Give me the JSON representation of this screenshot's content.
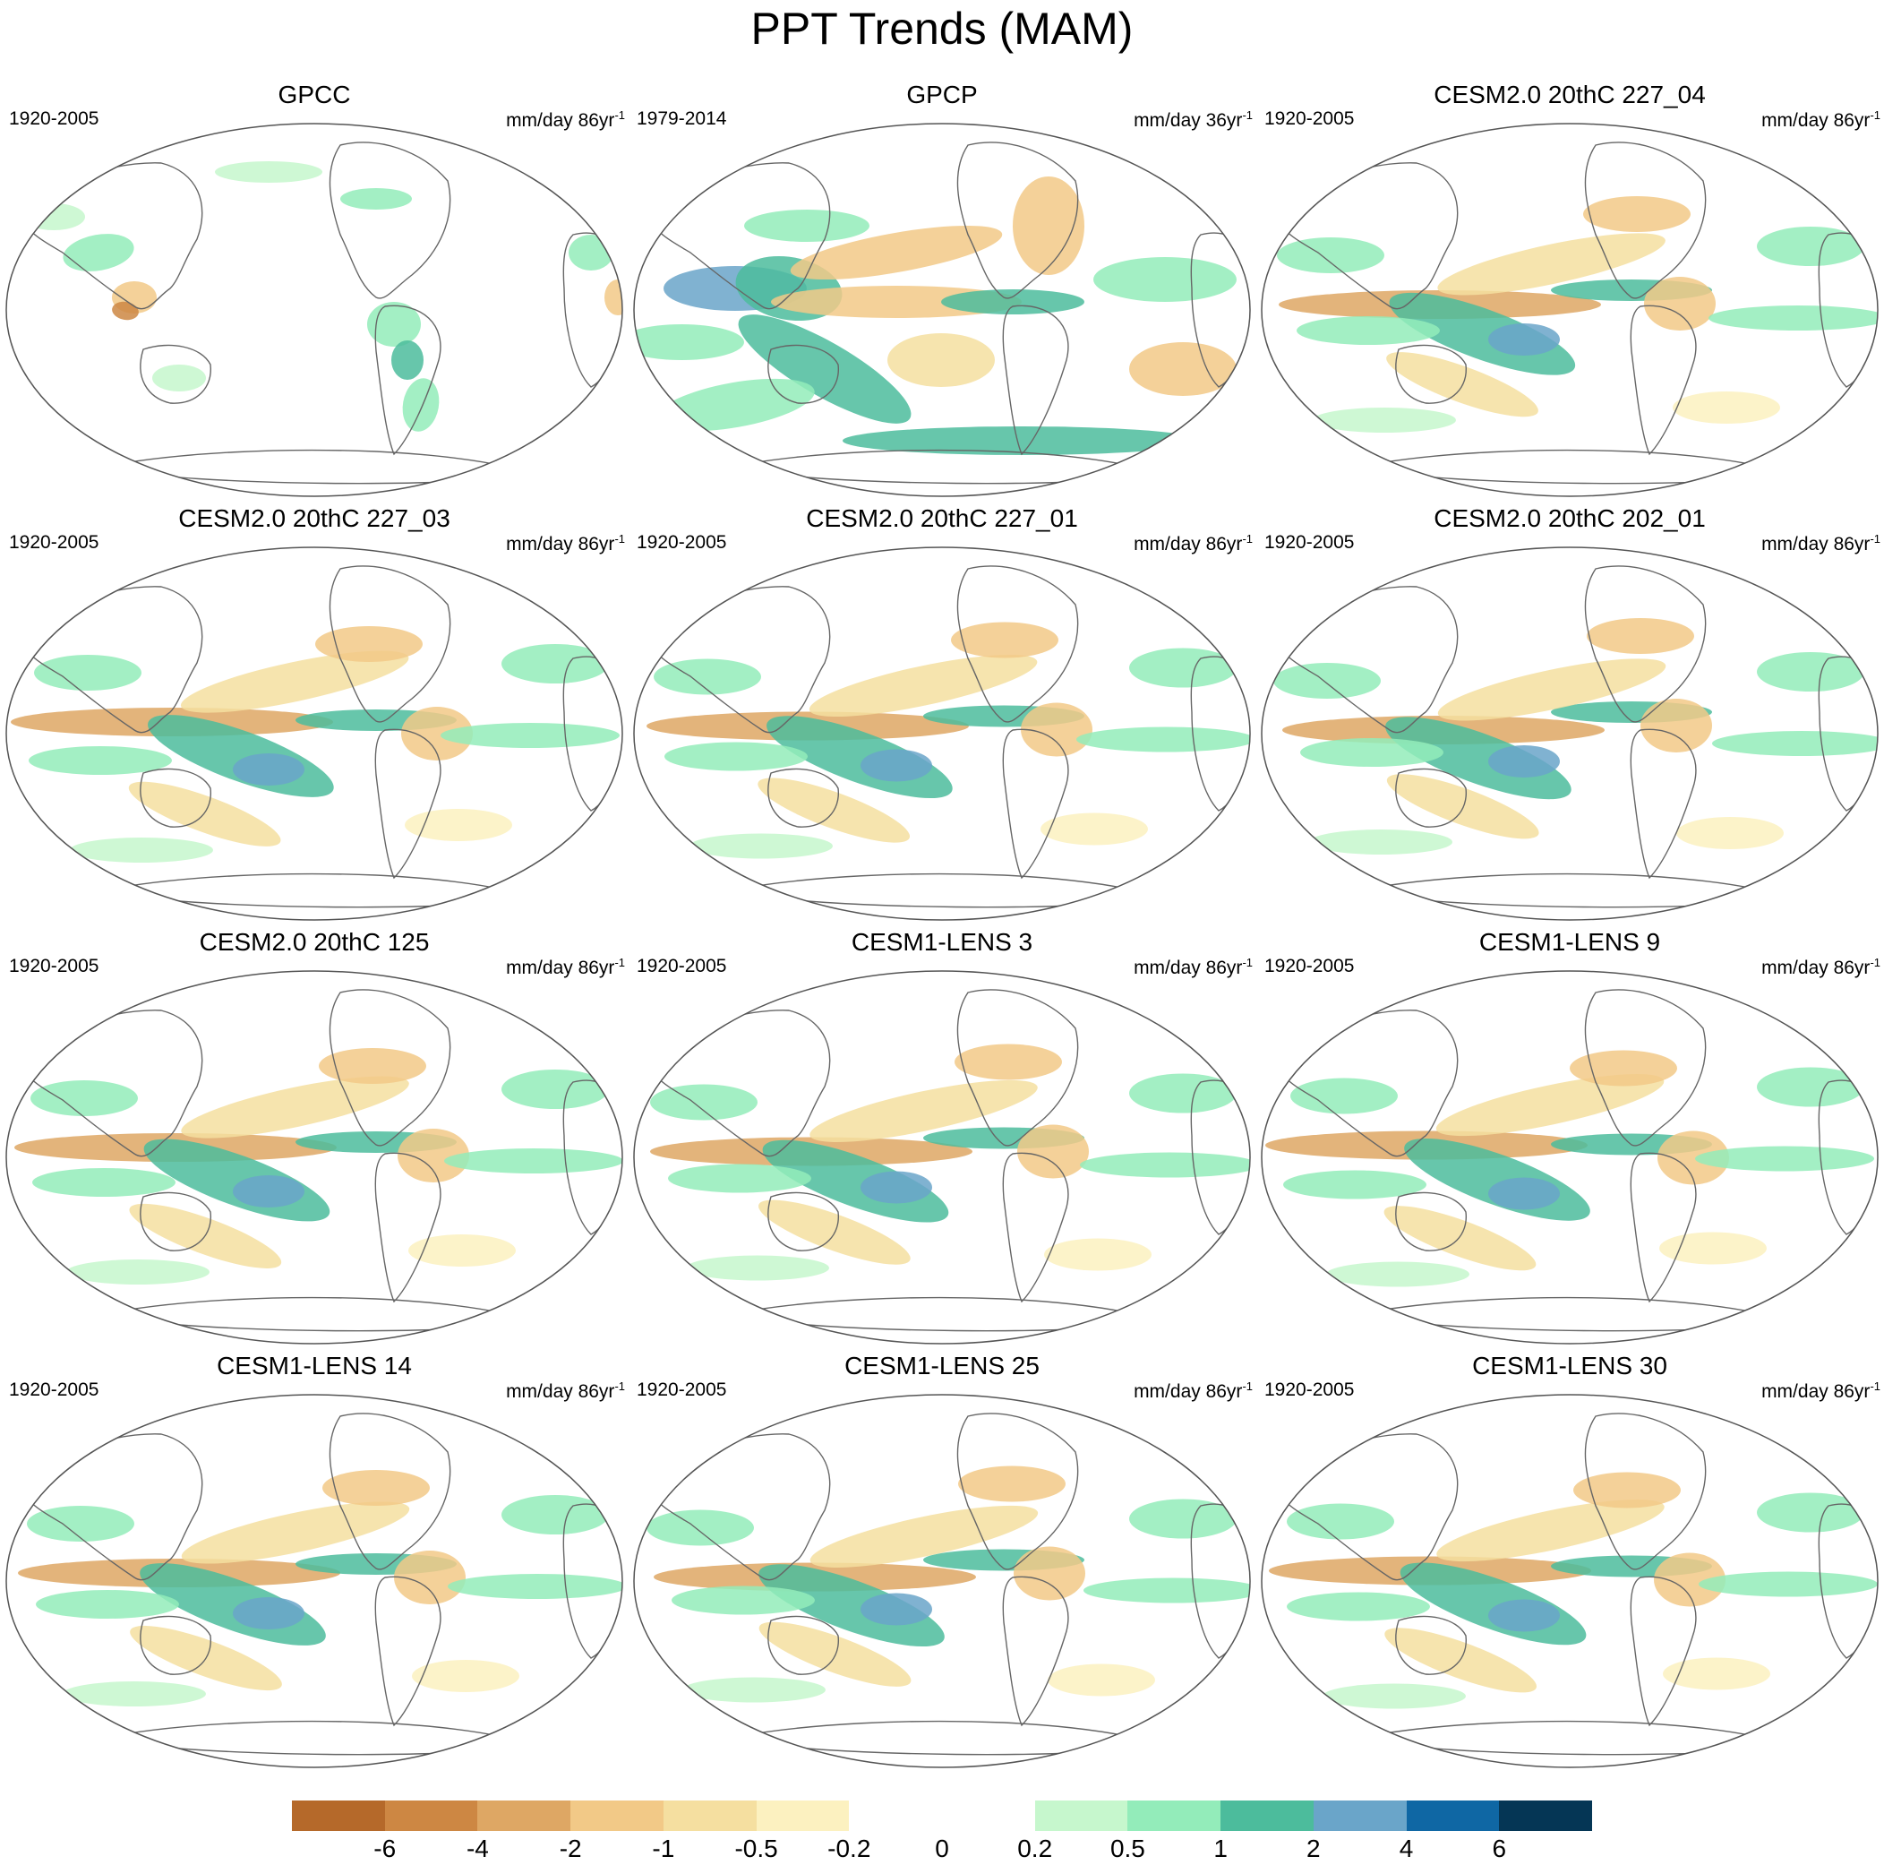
{
  "title": "PPT Trends (MAM)",
  "panels": [
    {
      "title": "GPCC",
      "period": "1920-2005",
      "units": "mm/day 86yr",
      "units_exp": "-1",
      "style": "obs-land"
    },
    {
      "title": "GPCP",
      "period": "1979-2014",
      "units": "mm/day 36yr",
      "units_exp": "-1",
      "style": "obs-sat"
    },
    {
      "title": "CESM2.0 20thC 227_04",
      "period": "1920-2005",
      "units": "mm/day 86yr",
      "units_exp": "-1",
      "style": "model"
    },
    {
      "title": "CESM2.0 20thC 227_03",
      "period": "1920-2005",
      "units": "mm/day 86yr",
      "units_exp": "-1",
      "style": "model"
    },
    {
      "title": "CESM2.0 20thC 227_01",
      "period": "1920-2005",
      "units": "mm/day 86yr",
      "units_exp": "-1",
      "style": "model"
    },
    {
      "title": "CESM2.0 20thC 202_01",
      "period": "1920-2005",
      "units": "mm/day 86yr",
      "units_exp": "-1",
      "style": "model"
    },
    {
      "title": "CESM2.0 20thC 125",
      "period": "1920-2005",
      "units": "mm/day 86yr",
      "units_exp": "-1",
      "style": "model"
    },
    {
      "title": "CESM1-LENS 3",
      "period": "1920-2005",
      "units": "mm/day 86yr",
      "units_exp": "-1",
      "style": "model"
    },
    {
      "title": "CESM1-LENS 9",
      "period": "1920-2005",
      "units": "mm/day 86yr",
      "units_exp": "-1",
      "style": "model"
    },
    {
      "title": "CESM1-LENS 14",
      "period": "1920-2005",
      "units": "mm/day 86yr",
      "units_exp": "-1",
      "style": "model"
    },
    {
      "title": "CESM1-LENS 25",
      "period": "1920-2005",
      "units": "mm/day 86yr",
      "units_exp": "-1",
      "style": "model"
    },
    {
      "title": "CESM1-LENS 30",
      "period": "1920-2005",
      "units": "mm/day 86yr",
      "units_exp": "-1",
      "style": "model"
    }
  ],
  "colorbar": {
    "colors": [
      "#b5692a",
      "#cd8743",
      "#dea764",
      "#f2c987",
      "#f5dfa0",
      "#fcf1c0",
      "#ffffff",
      "#ffffff",
      "#c6f7cd",
      "#93ecba",
      "#4cbc9c",
      "#6aa5c9",
      "#0f67a4",
      "#053655"
    ],
    "labels": [
      "-6",
      "-4",
      "-2",
      "-1",
      "-0.5",
      "-0.2",
      "0",
      "0.2",
      "0.5",
      "1",
      "2",
      "4",
      "6"
    ]
  }
}
